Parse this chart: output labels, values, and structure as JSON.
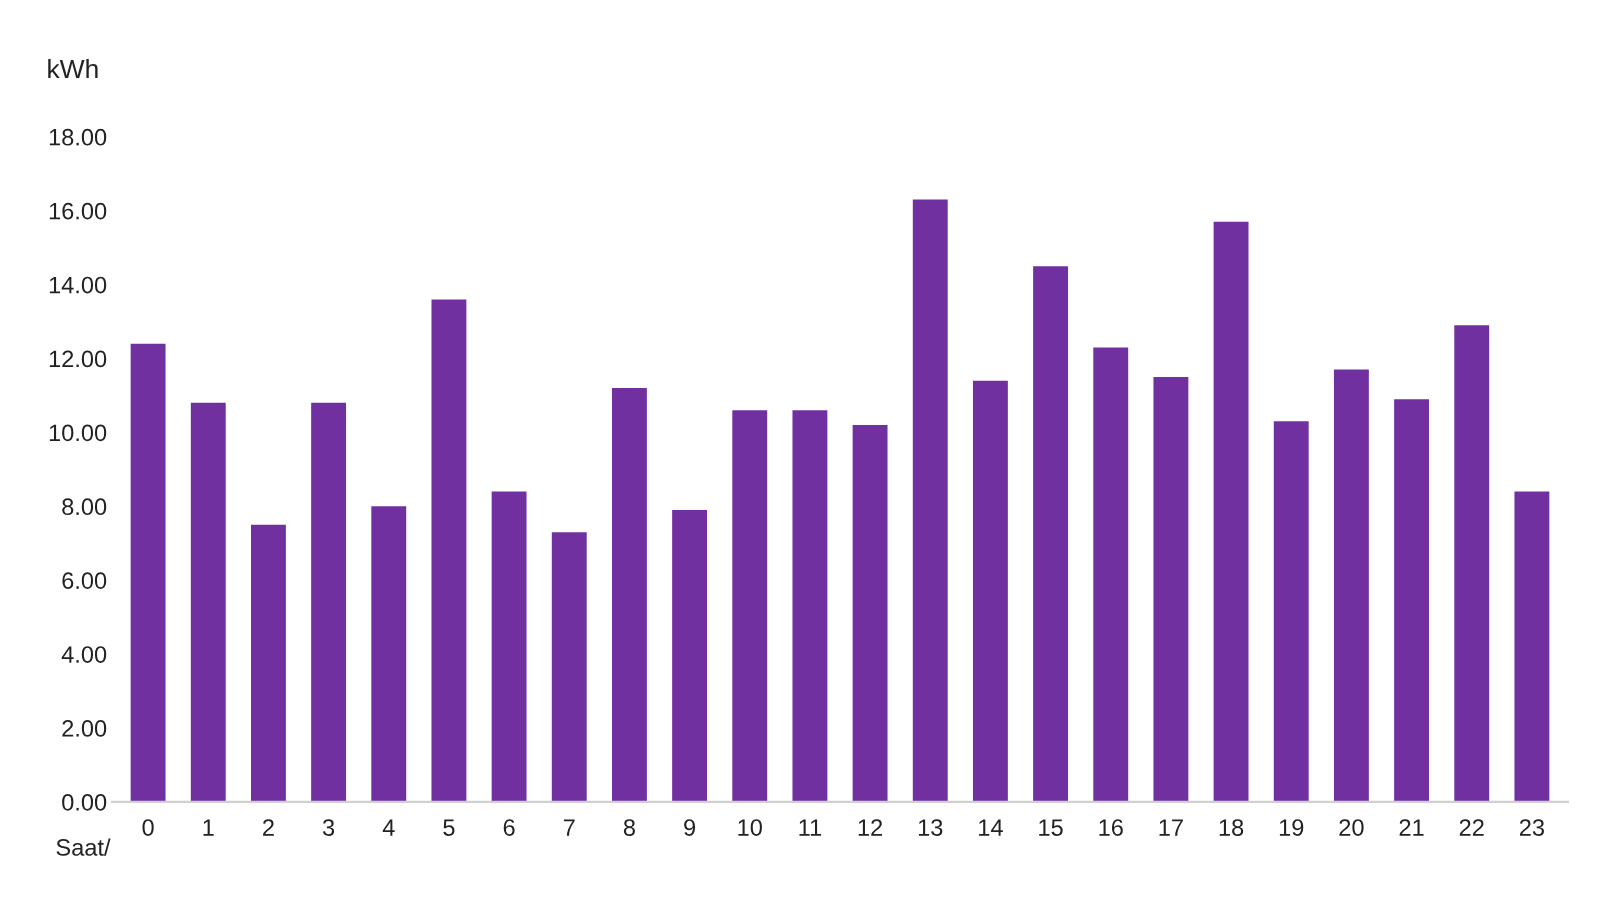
{
  "chart_data": {
    "type": "bar",
    "ylabel": "kWh",
    "xlabel": "Saat/",
    "categories": [
      "0",
      "1",
      "2",
      "3",
      "4",
      "5",
      "6",
      "7",
      "8",
      "9",
      "10",
      "11",
      "12",
      "13",
      "14",
      "15",
      "16",
      "17",
      "18",
      "19",
      "20",
      "21",
      "22",
      "23"
    ],
    "values": [
      12.4,
      10.8,
      7.5,
      10.8,
      8.0,
      13.6,
      8.4,
      7.3,
      11.2,
      7.9,
      10.6,
      10.6,
      10.2,
      16.3,
      11.4,
      14.5,
      12.3,
      11.5,
      15.7,
      10.3,
      11.7,
      10.9,
      12.9,
      8.4
    ],
    "color": "#7030a0",
    "ylim": [
      0,
      18
    ],
    "yticks": [
      {
        "value": 0,
        "label": "0.00"
      },
      {
        "value": 2,
        "label": "2.00"
      },
      {
        "value": 4,
        "label": "4.00"
      },
      {
        "value": 6,
        "label": "6.00"
      },
      {
        "value": 8,
        "label": "8.00"
      },
      {
        "value": 10,
        "label": "10.00"
      },
      {
        "value": 12,
        "label": "12.00"
      },
      {
        "value": 14,
        "label": "14.00"
      },
      {
        "value": 16,
        "label": "16.00"
      },
      {
        "value": 18,
        "label": "18.00"
      }
    ],
    "grid": false,
    "legend": false
  }
}
